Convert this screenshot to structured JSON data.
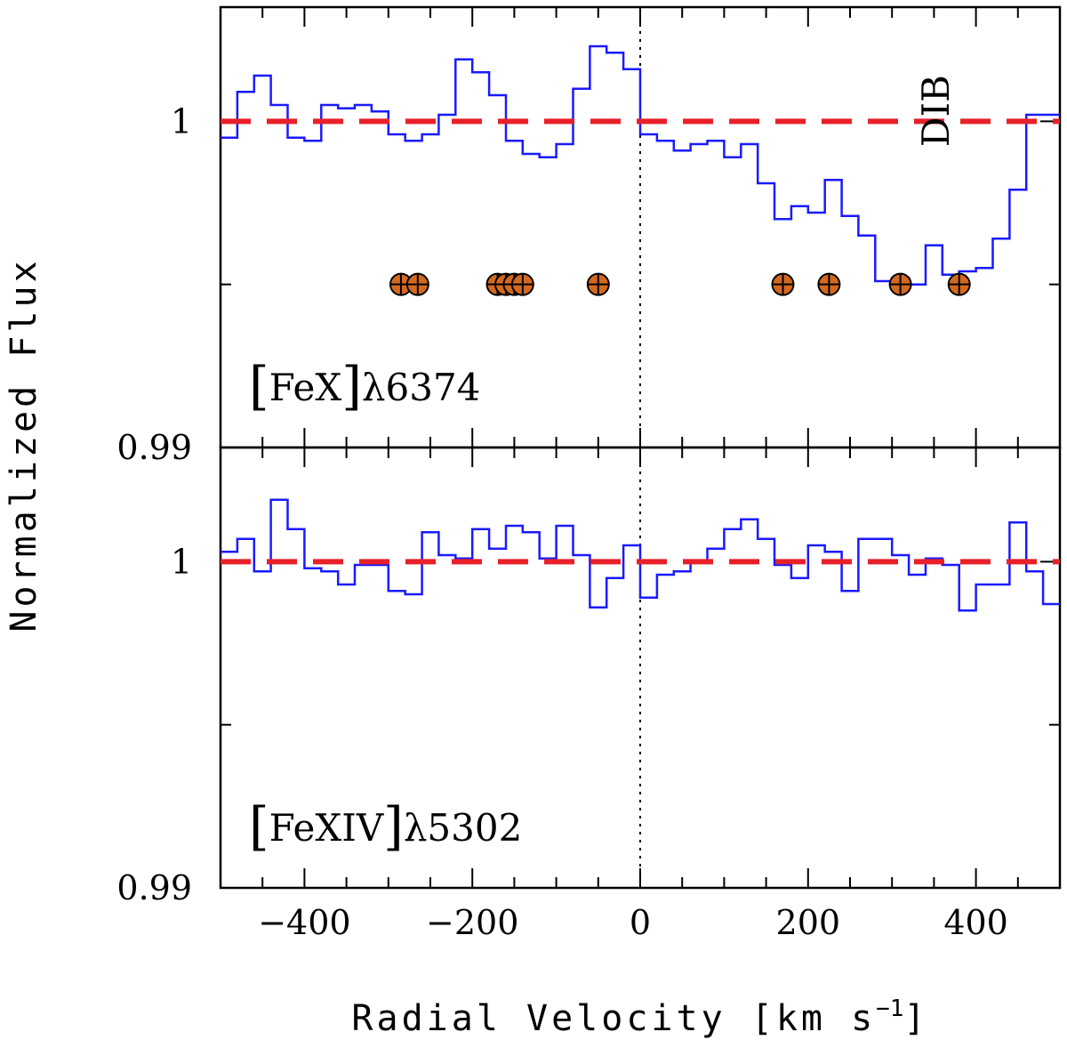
{
  "chart_data": {
    "type": "line",
    "title": "",
    "xlabel": "Radial Velocity [km s",
    "xlabel_sup": "−1",
    "xlabel_close": "]",
    "ylabel": "Normalized Flux",
    "xlim": [
      -500,
      500
    ],
    "x_major_ticks": [
      -400,
      -200,
      0,
      200,
      400
    ],
    "x_tick_labels": [
      "−400",
      "−200",
      "0",
      "200",
      "400"
    ],
    "reference_velocity": 0,
    "step_width": 20,
    "panels": [
      {
        "name": "FeX",
        "label_ion": "FeX",
        "label_lambda": "λ6374",
        "ylim": [
          0.99,
          1.0035
        ],
        "y_tick_values": [
          0.99,
          1
        ],
        "y_tick_labels": [
          "0.99",
          "1"
        ],
        "reference_flux": 1,
        "annotation": "DIB",
        "annotation_velocity": 355,
        "annotation_flux": 0.9995,
        "marker_flux": 0.995,
        "marker_velocities": [
          -285,
          -265,
          -170,
          -160,
          -150,
          -140,
          -50,
          170,
          225,
          310,
          380
        ],
        "series": [
          {
            "name": "spectrum",
            "x": [
              -500,
              -480,
              -460,
              -440,
              -420,
              -400,
              -380,
              -360,
              -340,
              -320,
              -300,
              -280,
              -260,
              -240,
              -220,
              -200,
              -180,
              -160,
              -140,
              -120,
              -100,
              -80,
              -60,
              -40,
              -20,
              0,
              20,
              40,
              60,
              80,
              100,
              120,
              140,
              160,
              180,
              200,
              220,
              240,
              260,
              280,
              300,
              320,
              340,
              360,
              380,
              400,
              420,
              440,
              460,
              480
            ],
            "values": [
              0.9995,
              1.0009,
              1.0014,
              1.0005,
              0.9995,
              0.9994,
              1.0005,
              1.0004,
              1.0005,
              1.0003,
              0.9996,
              0.9994,
              0.9996,
              1.0002,
              1.0019,
              1.0015,
              1.0008,
              0.9994,
              0.999,
              0.9989,
              0.9993,
              1.001,
              1.0023,
              1.0021,
              1.0016,
              0.9996,
              0.9994,
              0.9991,
              0.9993,
              0.9994,
              0.9989,
              0.9993,
              0.9981,
              0.997,
              0.9974,
              0.9972,
              0.9982,
              0.9971,
              0.9965,
              0.9951,
              0.9952,
              0.995,
              0.9962,
              0.9953,
              0.9954,
              0.9955,
              0.9964,
              0.9979,
              1.0002,
              1.0002
            ]
          }
        ]
      },
      {
        "name": "FeXIV",
        "label_ion": "FeXIV",
        "label_lambda": "λ5302",
        "ylim": [
          0.99,
          1.0035
        ],
        "y_tick_values": [
          0.99,
          1
        ],
        "y_tick_labels": [
          "0.99",
          "1"
        ],
        "reference_flux": 1,
        "series": [
          {
            "name": "spectrum",
            "x": [
              -500,
              -480,
              -460,
              -440,
              -420,
              -400,
              -380,
              -360,
              -340,
              -320,
              -300,
              -280,
              -260,
              -240,
              -220,
              -200,
              -180,
              -160,
              -140,
              -120,
              -100,
              -80,
              -60,
              -40,
              -20,
              0,
              20,
              40,
              60,
              80,
              100,
              120,
              140,
              160,
              180,
              200,
              220,
              240,
              260,
              280,
              300,
              320,
              340,
              360,
              380,
              400,
              420,
              440,
              460,
              480
            ],
            "values": [
              1.0003,
              1.0007,
              0.9997,
              1.0019,
              1.001,
              0.9998,
              0.9997,
              0.9993,
              0.9999,
              0.9999,
              0.9991,
              0.999,
              1.0009,
              1.0002,
              1.0001,
              1.001,
              1.0004,
              1.0011,
              1.0009,
              1.0001,
              1.0011,
              1.0002,
              0.9986,
              0.9995,
              1.0005,
              0.9989,
              0.9996,
              0.9997,
              1.0,
              1.0004,
              1.001,
              1.0013,
              1.0007,
              0.9999,
              0.9995,
              1.0005,
              1.0003,
              0.9991,
              1.0007,
              1.0007,
              1.0002,
              0.9996,
              1.0001,
              0.9999,
              0.9985,
              0.9993,
              0.9993,
              1.0012,
              0.9997,
              0.9987
            ]
          }
        ]
      }
    ]
  }
}
